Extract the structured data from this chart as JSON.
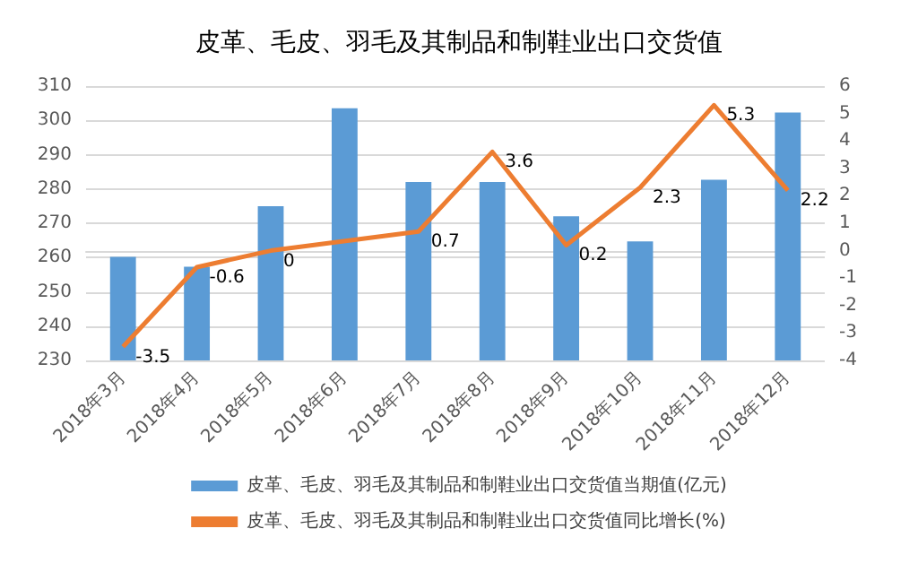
{
  "chart_data": {
    "type": "bar",
    "title": "皮革、毛皮、羽毛及其制品和制鞋业出口交货值",
    "categories": [
      "2018年3月",
      "2018年4月",
      "2018年5月",
      "2018年6月",
      "2018年7月",
      "2018年8月",
      "2018年9月",
      "2018年10月",
      "2018年11月",
      "2018年12月"
    ],
    "series": [
      {
        "name": "皮革、毛皮、羽毛及其制品和制鞋业出口交货值当期值(亿元)",
        "color": "#5b9bd5",
        "values": [
          260.2,
          257.3,
          275,
          303.5,
          282,
          282,
          272,
          264.7,
          282.7,
          302.3
        ]
      },
      {
        "name": "皮革、毛皮、羽毛及其制品和制鞋业出口交货值同比增长(%)",
        "type": "line",
        "axis": "y2",
        "color": "#ed7d31",
        "data_labels": true,
        "values": [
          -3.5,
          -0.6,
          0,
          null,
          0.7,
          3.6,
          0.2,
          2.3,
          5.3,
          2.2
        ]
      }
    ],
    "ylim": [
      230,
      310
    ],
    "yticks": [
      230,
      240,
      250,
      260,
      270,
      280,
      290,
      300,
      310
    ],
    "y2lim": [
      -4,
      6
    ],
    "y2ticks": [
      -4,
      -3,
      -2,
      -1,
      0,
      1,
      2,
      3,
      4,
      5,
      6
    ],
    "grid": "y",
    "legend": "bottom",
    "marker": "none"
  }
}
